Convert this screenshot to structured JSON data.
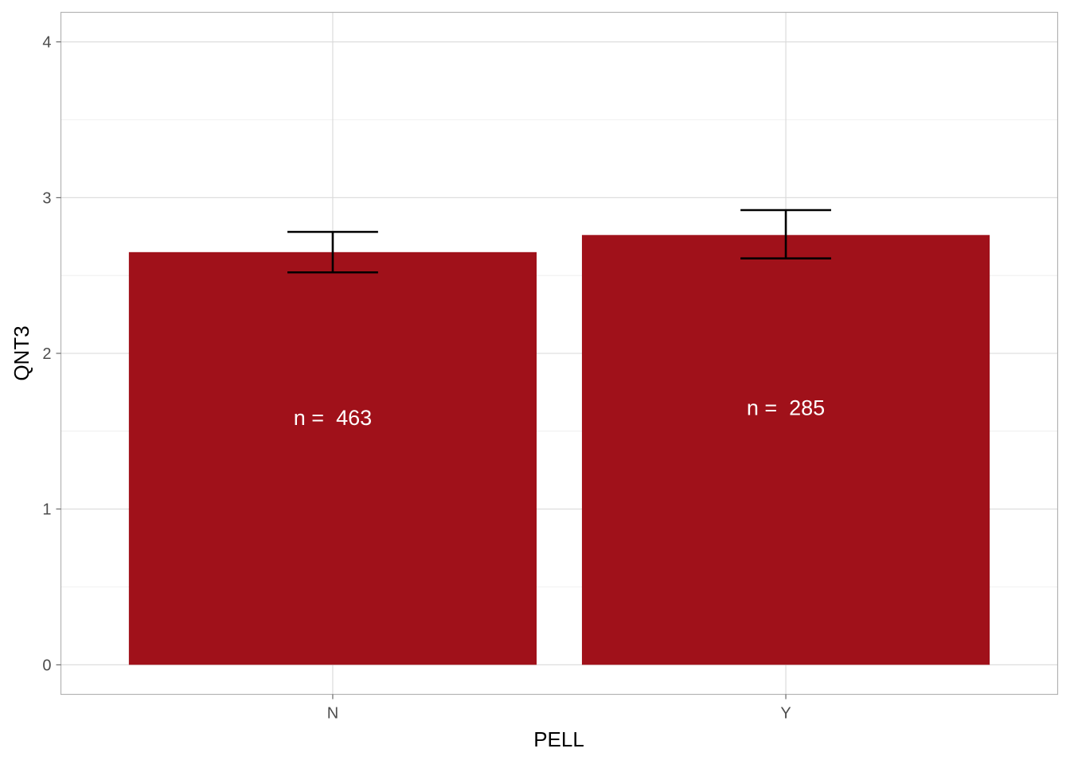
{
  "chart_data": {
    "type": "bar",
    "categories": [
      "N",
      "Y"
    ],
    "values": [
      2.65,
      2.76
    ],
    "error_low": [
      2.52,
      2.61
    ],
    "error_high": [
      2.78,
      2.92
    ],
    "bar_labels": [
      "n =  463",
      "n =  285"
    ],
    "xlabel": "PELL",
    "ylabel": "QNT3",
    "ylim": [
      -0.19,
      4.19
    ],
    "yticks": [
      0,
      1,
      2,
      3,
      4
    ],
    "grid": true,
    "bar_color": "#A0111A"
  }
}
